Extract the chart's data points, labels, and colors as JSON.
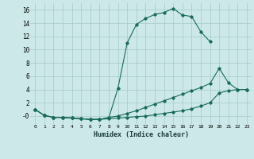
{
  "xlabel": "Humidex (Indice chaleur)",
  "background_color": "#cce8e8",
  "grid_color": "#aacece",
  "line_color": "#1a6b5a",
  "xlim": [
    -0.5,
    23.5
  ],
  "ylim": [
    -1.2,
    17
  ],
  "yticks": [
    0,
    2,
    4,
    6,
    8,
    10,
    12,
    14,
    16
  ],
  "ytick_labels": [
    "-0",
    "2",
    "4",
    "6",
    "8",
    "10",
    "12",
    "14",
    "16"
  ],
  "xticks": [
    0,
    1,
    2,
    3,
    4,
    5,
    6,
    7,
    8,
    9,
    10,
    11,
    12,
    13,
    14,
    15,
    16,
    17,
    18,
    19,
    20,
    21,
    22,
    23
  ],
  "series": [
    {
      "x": [
        0,
        1,
        2,
        3,
        4,
        5,
        6,
        7,
        8,
        9,
        10,
        11,
        12,
        13,
        14,
        15,
        16,
        17,
        18,
        19
      ],
      "y": [
        1.0,
        0.1,
        -0.2,
        -0.2,
        -0.3,
        -0.4,
        -0.5,
        -0.5,
        -0.3,
        4.2,
        11.0,
        13.8,
        14.7,
        15.3,
        15.6,
        16.2,
        15.2,
        15.0,
        12.7,
        11.2
      ]
    },
    {
      "x": [
        0,
        1,
        2,
        3,
        4,
        5,
        6,
        7,
        8,
        9,
        10,
        11,
        12,
        13,
        14,
        15,
        16,
        17,
        18,
        19,
        20,
        21,
        22,
        23
      ],
      "y": [
        1.0,
        0.1,
        -0.2,
        -0.2,
        -0.3,
        -0.4,
        -0.5,
        -0.5,
        -0.2,
        0.0,
        0.4,
        0.8,
        1.3,
        1.8,
        2.3,
        2.8,
        3.3,
        3.8,
        4.3,
        4.9,
        7.2,
        5.0,
        4.0,
        4.0
      ]
    },
    {
      "x": [
        0,
        1,
        2,
        3,
        4,
        5,
        6,
        7,
        8,
        9,
        10,
        11,
        12,
        13,
        14,
        15,
        16,
        17,
        18,
        19,
        20,
        21,
        22,
        23
      ],
      "y": [
        1.0,
        0.1,
        -0.2,
        -0.2,
        -0.3,
        -0.4,
        -0.5,
        -0.5,
        -0.4,
        -0.3,
        -0.2,
        -0.1,
        0.0,
        0.2,
        0.4,
        0.6,
        0.8,
        1.1,
        1.5,
        2.0,
        3.5,
        3.8,
        4.0,
        4.0
      ]
    }
  ]
}
